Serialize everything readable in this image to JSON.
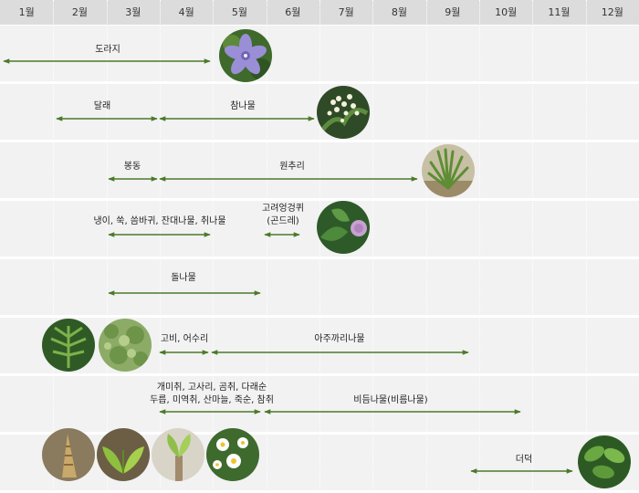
{
  "months": [
    "1월",
    "2월",
    "3월",
    "4월",
    "5월",
    "6월",
    "7월",
    "8월",
    "9월",
    "10월",
    "11월",
    "12월"
  ],
  "colors": {
    "arrow": "#4a7a2a",
    "header": "#dcdcdc",
    "band": "#f2f2f2"
  },
  "labels": {
    "doraji": "도라지",
    "dallae": "달래",
    "chamnamul": "참나물",
    "bongdong": "봉동",
    "wonchuri": "원추리",
    "naengi_line1": "냉이, 쑥, 씀바귀, 잔대나물, 취나물",
    "goryeo_line1": "고려엉겅퀴",
    "goryeo_line2": "(곤드레)",
    "dolnamul": "돌나물",
    "gobi": "고비, 어수리",
    "ajukkari": "아주까리나물",
    "gaemichwi_line1": "개미취, 고사리, 곰취, 다래순",
    "gaemichwi_line2": "두릅, 미역취, 산마늘, 죽순, 참취",
    "bidum": "비듬나물(비름나물)",
    "deodeok": "더덕"
  },
  "icons": {
    "bellflower": "bellflower-photo",
    "white_umbel": "white-umbel-photo",
    "daylily_leaves": "daylily-leaves-photo",
    "thistle": "thistle-photo",
    "fern_plant": "fern-plant-photo",
    "moss_plant": "moss-plant-photo",
    "bamboo_shoot": "bamboo-shoot-photo",
    "leaf_sprout": "leaf-sprout-photo",
    "aralia_bud": "aralia-bud-photo",
    "white_flowers": "white-flowers-photo",
    "deodeok_leaves": "deodeok-leaves-photo"
  }
}
